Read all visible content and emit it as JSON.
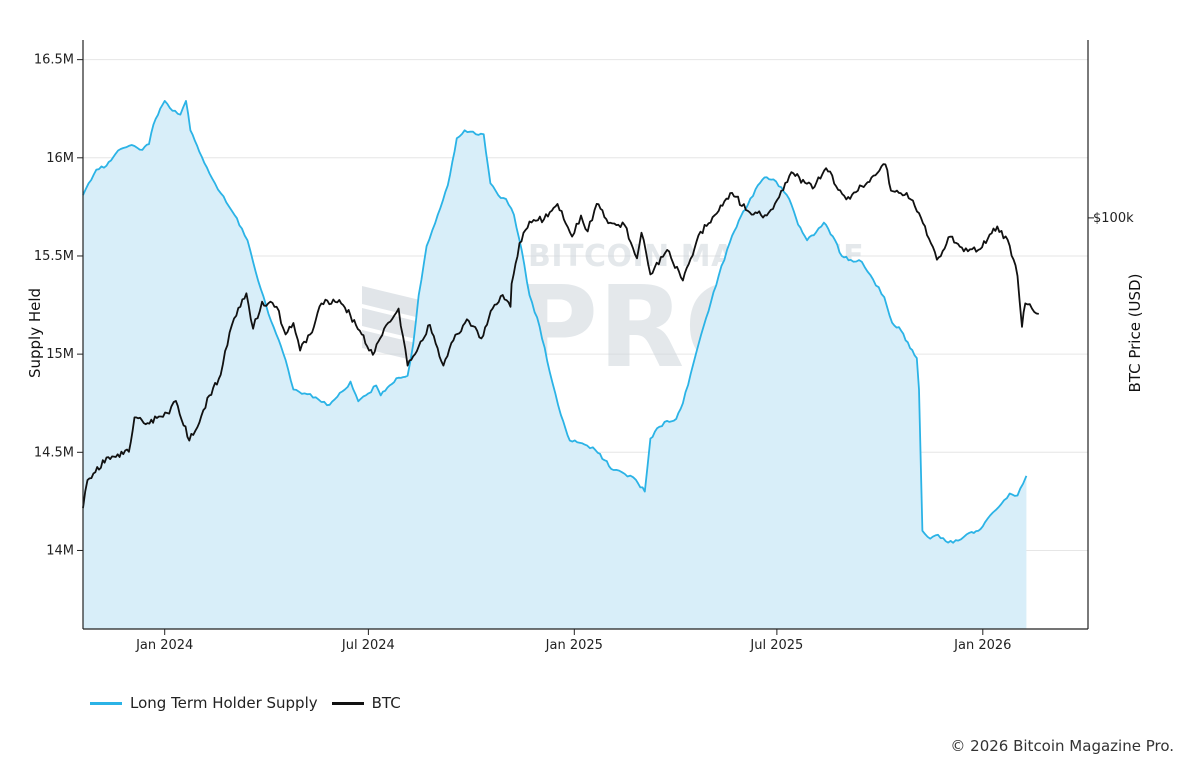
{
  "chart_data": {
    "type": "line",
    "ylabel": "Supply Held",
    "y2label": "BTC Price (USD)",
    "ylim": [
      13.6,
      16.6
    ],
    "yticks": [
      {
        "value": 16.5,
        "label": "16.5M"
      },
      {
        "value": 16.0,
        "label": "16M"
      },
      {
        "value": 15.5,
        "label": "15.5M"
      },
      {
        "value": 15.0,
        "label": "15M"
      },
      {
        "value": 14.5,
        "label": "14.5M"
      },
      {
        "value": 14.0,
        "label": "14M"
      }
    ],
    "y2scale": "log",
    "y2lim": [
      18000,
      210000
    ],
    "y2ticks": [
      {
        "value": 100000,
        "label": "$100k"
      }
    ],
    "xlim": [
      "2023-10-20",
      "2026-04-05"
    ],
    "xticks": [
      {
        "value": "2024-01-01",
        "label": "Jan 2024"
      },
      {
        "value": "2024-07-01",
        "label": "Jul 2024"
      },
      {
        "value": "2025-01-01",
        "label": "Jan 2025"
      },
      {
        "value": "2025-07-01",
        "label": "Jul 2025"
      },
      {
        "value": "2026-01-01",
        "label": "Jan 2026"
      }
    ],
    "grid": true,
    "legend_position": "bottom-left",
    "series": [
      {
        "name": "Long Term Holder Supply",
        "axis": "left",
        "color": "#2bb3e6",
        "fill": "#d8eef9",
        "style": "area",
        "points": [
          [
            "2023-10-20",
            15.81
          ],
          [
            "2023-10-25",
            15.87
          ],
          [
            "2023-11-01",
            15.94
          ],
          [
            "2023-11-10",
            15.96
          ],
          [
            "2023-11-18",
            16.02
          ],
          [
            "2023-11-25",
            16.05
          ],
          [
            "2023-12-05",
            16.06
          ],
          [
            "2023-12-12",
            16.04
          ],
          [
            "2023-12-18",
            16.07
          ],
          [
            "2023-12-22",
            16.17
          ],
          [
            "2023-12-28",
            16.25
          ],
          [
            "2024-01-01",
            16.29
          ],
          [
            "2024-01-08",
            16.24
          ],
          [
            "2024-01-15",
            16.22
          ],
          [
            "2024-01-20",
            16.29
          ],
          [
            "2024-01-24",
            16.14
          ],
          [
            "2024-02-01",
            16.03
          ],
          [
            "2024-02-10",
            15.92
          ],
          [
            "2024-02-20",
            15.82
          ],
          [
            "2024-03-01",
            15.73
          ],
          [
            "2024-03-10",
            15.64
          ],
          [
            "2024-03-15",
            15.58
          ],
          [
            "2024-03-20",
            15.47
          ],
          [
            "2024-03-27",
            15.33
          ],
          [
            "2024-04-05",
            15.17
          ],
          [
            "2024-04-12",
            15.07
          ],
          [
            "2024-04-18",
            14.97
          ],
          [
            "2024-04-25",
            14.82
          ],
          [
            "2024-05-05",
            14.8
          ],
          [
            "2024-05-15",
            14.78
          ],
          [
            "2024-05-25",
            14.74
          ],
          [
            "2024-06-01",
            14.77
          ],
          [
            "2024-06-10",
            14.82
          ],
          [
            "2024-06-15",
            14.86
          ],
          [
            "2024-06-22",
            14.76
          ],
          [
            "2024-07-01",
            14.8
          ],
          [
            "2024-07-08",
            14.84
          ],
          [
            "2024-07-12",
            14.79
          ],
          [
            "2024-07-20",
            14.84
          ],
          [
            "2024-07-28",
            14.88
          ],
          [
            "2024-08-05",
            14.89
          ],
          [
            "2024-08-10",
            15.05
          ],
          [
            "2024-08-15",
            15.3
          ],
          [
            "2024-08-22",
            15.55
          ],
          [
            "2024-09-01",
            15.71
          ],
          [
            "2024-09-10",
            15.86
          ],
          [
            "2024-09-18",
            16.1
          ],
          [
            "2024-09-25",
            16.14
          ],
          [
            "2024-10-05",
            16.12
          ],
          [
            "2024-10-12",
            16.12
          ],
          [
            "2024-10-18",
            15.87
          ],
          [
            "2024-10-25",
            15.81
          ],
          [
            "2024-11-01",
            15.79
          ],
          [
            "2024-11-08",
            15.71
          ],
          [
            "2024-11-15",
            15.53
          ],
          [
            "2024-11-22",
            15.3
          ],
          [
            "2024-12-01",
            15.14
          ],
          [
            "2024-12-10",
            14.91
          ],
          [
            "2024-12-20",
            14.69
          ],
          [
            "2024-12-28",
            14.56
          ],
          [
            "2025-01-10",
            14.54
          ],
          [
            "2025-01-20",
            14.51
          ],
          [
            "2025-01-28",
            14.46
          ],
          [
            "2025-02-05",
            14.41
          ],
          [
            "2025-02-15",
            14.39
          ],
          [
            "2025-02-25",
            14.36
          ],
          [
            "2025-03-05",
            14.3
          ],
          [
            "2025-03-10",
            14.57
          ],
          [
            "2025-03-18",
            14.63
          ],
          [
            "2025-03-25",
            14.66
          ],
          [
            "2025-04-02",
            14.67
          ],
          [
            "2025-04-08",
            14.75
          ],
          [
            "2025-04-15",
            14.9
          ],
          [
            "2025-04-22",
            15.05
          ],
          [
            "2025-05-01",
            15.22
          ],
          [
            "2025-05-10",
            15.4
          ],
          [
            "2025-05-20",
            15.57
          ],
          [
            "2025-05-28",
            15.68
          ],
          [
            "2025-06-05",
            15.76
          ],
          [
            "2025-06-12",
            15.84
          ],
          [
            "2025-06-20",
            15.9
          ],
          [
            "2025-06-28",
            15.89
          ],
          [
            "2025-07-05",
            15.85
          ],
          [
            "2025-07-12",
            15.79
          ],
          [
            "2025-07-20",
            15.66
          ],
          [
            "2025-07-28",
            15.58
          ],
          [
            "2025-08-05",
            15.62
          ],
          [
            "2025-08-12",
            15.67
          ],
          [
            "2025-08-20",
            15.6
          ],
          [
            "2025-08-28",
            15.5
          ],
          [
            "2025-09-05",
            15.48
          ],
          [
            "2025-09-15",
            15.47
          ],
          [
            "2025-09-25",
            15.38
          ],
          [
            "2025-10-05",
            15.29
          ],
          [
            "2025-10-12",
            15.16
          ],
          [
            "2025-10-20",
            15.12
          ],
          [
            "2025-10-28",
            15.03
          ],
          [
            "2025-11-03",
            14.98
          ],
          [
            "2025-11-05",
            14.82
          ],
          [
            "2025-11-08",
            14.1
          ],
          [
            "2025-11-15",
            14.06
          ],
          [
            "2025-11-22",
            14.08
          ],
          [
            "2025-12-01",
            14.04
          ],
          [
            "2025-12-10",
            14.05
          ],
          [
            "2025-12-20",
            14.09
          ],
          [
            "2025-12-28",
            14.1
          ],
          [
            "2026-01-05",
            14.16
          ],
          [
            "2026-01-15",
            14.22
          ],
          [
            "2026-01-25",
            14.29
          ],
          [
            "2026-02-01",
            14.28
          ],
          [
            "2026-02-06",
            14.34
          ],
          [
            "2026-02-09",
            14.38
          ]
        ]
      },
      {
        "name": "BTC",
        "axis": "right",
        "color": "#111111",
        "style": "line",
        "points": [
          [
            "2023-10-20",
            29800
          ],
          [
            "2023-10-24",
            33500
          ],
          [
            "2023-10-31",
            34600
          ],
          [
            "2023-11-10",
            36800
          ],
          [
            "2023-11-20",
            37300
          ],
          [
            "2023-11-30",
            37700
          ],
          [
            "2023-12-05",
            43500
          ],
          [
            "2023-12-15",
            42300
          ],
          [
            "2023-12-25",
            43400
          ],
          [
            "2024-01-05",
            44200
          ],
          [
            "2024-01-11",
            46600
          ],
          [
            "2024-01-23",
            39500
          ],
          [
            "2024-02-01",
            42600
          ],
          [
            "2024-02-10",
            47700
          ],
          [
            "2024-02-20",
            52000
          ],
          [
            "2024-02-28",
            62000
          ],
          [
            "2024-03-05",
            66500
          ],
          [
            "2024-03-14",
            73000
          ],
          [
            "2024-03-20",
            63000
          ],
          [
            "2024-03-28",
            70500
          ],
          [
            "2024-04-10",
            69000
          ],
          [
            "2024-04-18",
            61500
          ],
          [
            "2024-04-25",
            64500
          ],
          [
            "2024-05-01",
            57500
          ],
          [
            "2024-05-10",
            61500
          ],
          [
            "2024-05-20",
            70000
          ],
          [
            "2024-06-05",
            71000
          ],
          [
            "2024-06-15",
            66500
          ],
          [
            "2024-06-25",
            61500
          ],
          [
            "2024-07-05",
            56500
          ],
          [
            "2024-07-15",
            63000
          ],
          [
            "2024-07-28",
            68500
          ],
          [
            "2024-08-05",
            54000
          ],
          [
            "2024-08-15",
            58500
          ],
          [
            "2024-08-25",
            64000
          ],
          [
            "2024-09-06",
            54000
          ],
          [
            "2024-09-15",
            60000
          ],
          [
            "2024-09-27",
            65500
          ],
          [
            "2024-10-10",
            60500
          ],
          [
            "2024-10-20",
            68500
          ],
          [
            "2024-10-29",
            72500
          ],
          [
            "2024-11-05",
            69000
          ],
          [
            "2024-11-06",
            76000
          ],
          [
            "2024-11-13",
            90000
          ],
          [
            "2024-11-22",
            98500
          ],
          [
            "2024-12-05",
            99500
          ],
          [
            "2024-12-17",
            106000
          ],
          [
            "2024-12-30",
            92500
          ],
          [
            "2025-01-07",
            101000
          ],
          [
            "2025-01-13",
            94500
          ],
          [
            "2025-01-21",
            106000
          ],
          [
            "2025-02-02",
            98000
          ],
          [
            "2025-02-15",
            97000
          ],
          [
            "2025-02-26",
            84500
          ],
          [
            "2025-03-02",
            94000
          ],
          [
            "2025-03-10",
            79000
          ],
          [
            "2025-03-25",
            87500
          ],
          [
            "2025-04-08",
            77000
          ],
          [
            "2025-04-22",
            93000
          ],
          [
            "2025-05-10",
            103000
          ],
          [
            "2025-05-22",
            111000
          ],
          [
            "2025-06-05",
            103000
          ],
          [
            "2025-06-22",
            101000
          ],
          [
            "2025-07-03",
            109000
          ],
          [
            "2025-07-14",
            121000
          ],
          [
            "2025-08-02",
            113000
          ],
          [
            "2025-08-14",
            123000
          ],
          [
            "2025-09-01",
            108000
          ],
          [
            "2025-09-20",
            116000
          ],
          [
            "2025-10-06",
            125000
          ],
          [
            "2025-10-11",
            112000
          ],
          [
            "2025-10-25",
            111000
          ],
          [
            "2025-11-05",
            102000
          ],
          [
            "2025-11-21",
            84000
          ],
          [
            "2025-12-03",
            92500
          ],
          [
            "2025-12-15",
            87000
          ],
          [
            "2025-12-28",
            87500
          ],
          [
            "2026-01-14",
            96500
          ],
          [
            "2026-01-25",
            89000
          ],
          [
            "2026-02-01",
            78500
          ],
          [
            "2026-02-05",
            63500
          ],
          [
            "2026-02-08",
            70000
          ],
          [
            "2026-02-14",
            68500
          ],
          [
            "2026-02-20",
            67000
          ]
        ]
      }
    ]
  },
  "watermark": {
    "line1": "BITCOIN MAGAZINE",
    "line2": "PRO",
    "mark": "®"
  },
  "legend": {
    "ltsh_label": "Long Term Holder Supply",
    "btc_label": "BTC"
  },
  "copyright": "© 2026 Bitcoin Magazine Pro."
}
